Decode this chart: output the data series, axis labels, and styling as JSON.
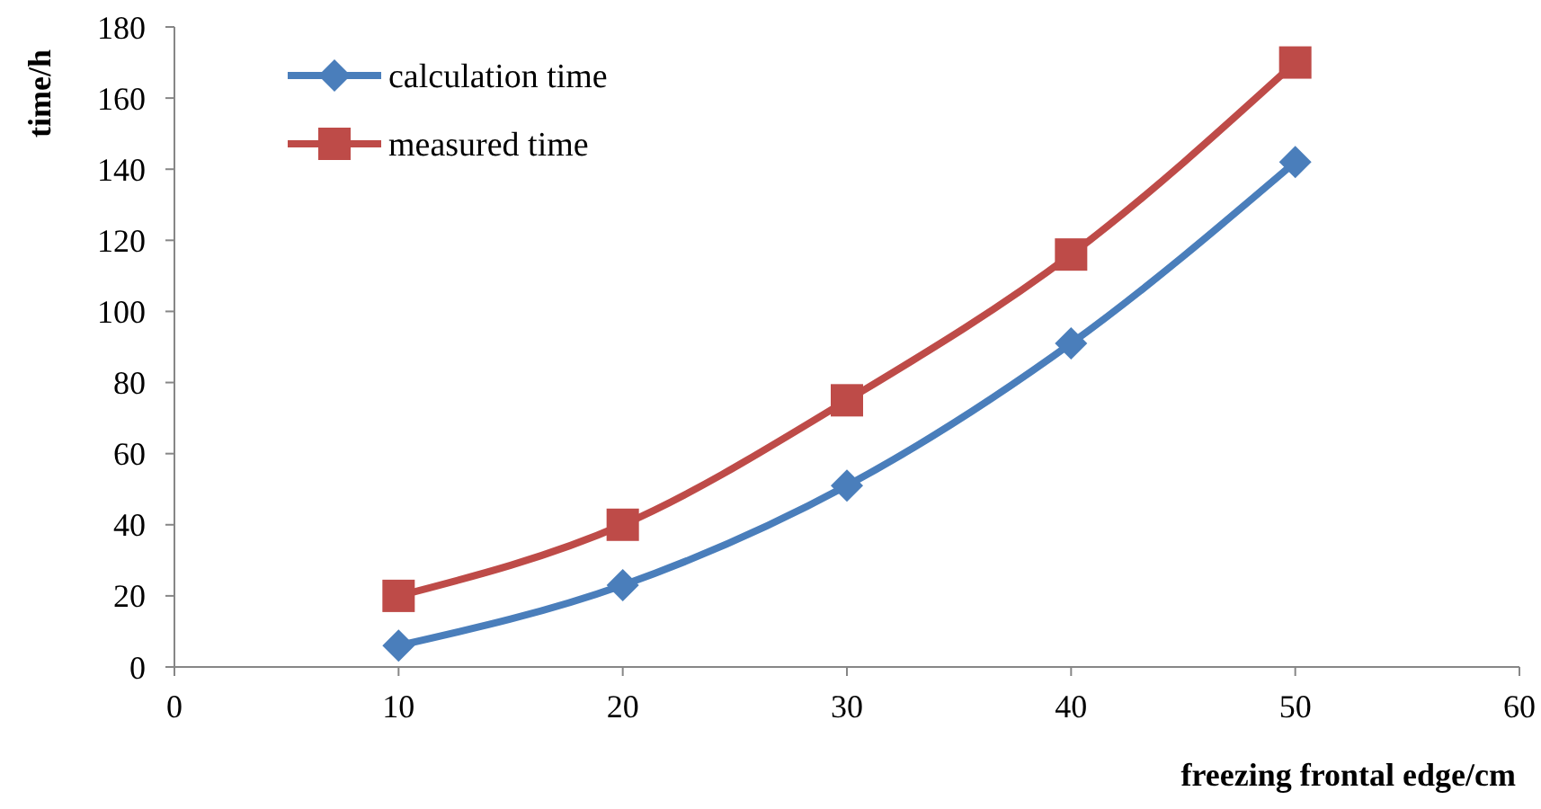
{
  "chart_data": {
    "type": "line",
    "xlabel": "freezing frontal edge/cm",
    "ylabel": "time/h",
    "x": [
      10,
      20,
      30,
      40,
      50
    ],
    "series": [
      {
        "name": "calculation time",
        "color": "#4a7ebb",
        "values": [
          6,
          23,
          51,
          91,
          142
        ],
        "marker": "diamond"
      },
      {
        "name": "measured time",
        "color": "#be4b48",
        "values": [
          20,
          40,
          75,
          116,
          170
        ],
        "marker": "square"
      }
    ],
    "xlim": [
      0,
      60
    ],
    "xticks": [
      0,
      10,
      20,
      30,
      40,
      50,
      60
    ],
    "ylim": [
      0,
      180
    ],
    "yticks": [
      0,
      20,
      40,
      60,
      80,
      100,
      120,
      140,
      160,
      180
    ],
    "grid": false,
    "legend": "top left"
  }
}
